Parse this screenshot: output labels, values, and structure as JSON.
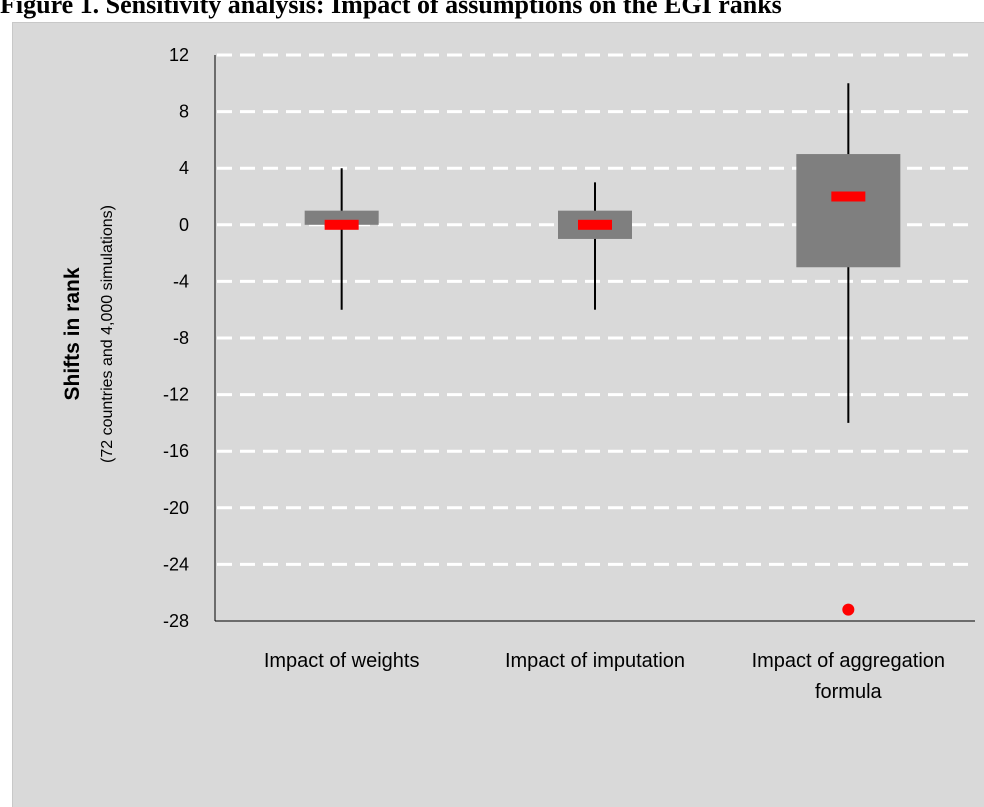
{
  "title": "Figure 1. Sensitivity analysis: Impact of assumptions on the EGI ranks",
  "chart_data": {
    "type": "boxplot",
    "ylabel": "Shifts in rank",
    "ylabel_sub": "(72 countries and 4,000 simulations)",
    "ylim": [
      -28,
      12
    ],
    "yticks": [
      12,
      8,
      4,
      0,
      -4,
      -8,
      -12,
      -16,
      -20,
      -24,
      -28
    ],
    "ytick_labels": [
      "12",
      "8",
      "4",
      "0",
      "-4",
      "-8",
      "-12",
      "-16",
      "-20",
      "-24",
      "-28"
    ],
    "grid": "dashed horizontal",
    "categories": [
      [
        "Impact of weights"
      ],
      [
        "Impact of imputation"
      ],
      [
        "Impact of aggregation",
        "formula"
      ]
    ],
    "boxes": [
      {
        "whisker_low": -6,
        "q1": 0,
        "q3": 1,
        "whisker_high": 4,
        "median": 0
      },
      {
        "whisker_low": -6,
        "q1": -1,
        "q3": 1,
        "whisker_high": 3,
        "median": 0
      },
      {
        "whisker_low": -14,
        "q1": -3,
        "q3": 5,
        "whisker_high": 10,
        "median": 2,
        "outliers": [
          -27.2
        ]
      }
    ],
    "colors": {
      "box": "#7f7f7f",
      "median": "#ff0000",
      "outlier": "#ff0000",
      "grid": "#ffffff",
      "whisker": "#000000"
    }
  }
}
